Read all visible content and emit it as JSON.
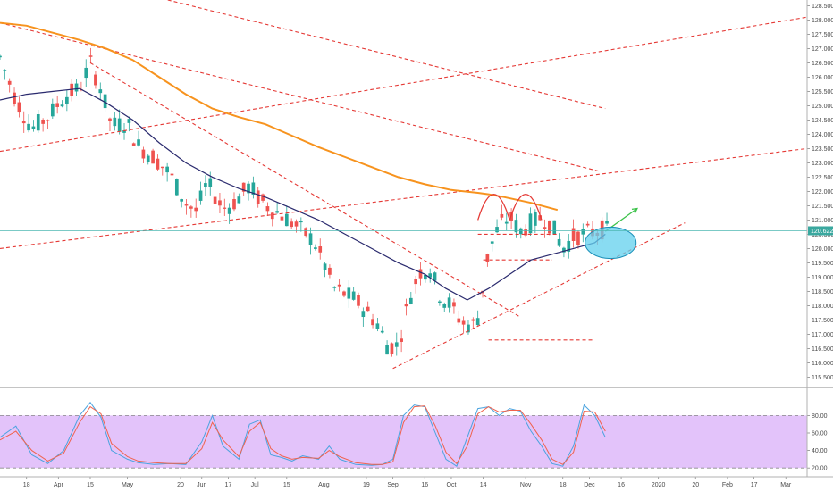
{
  "colors": {
    "up": "#26a69a",
    "down": "#ef5350",
    "ma_long": "#f7931e",
    "ma_short": "#2a2a6e",
    "trendline": "#e53935",
    "target_arrow": "#3cc24a",
    "ellipse_fill": "#62d0ee",
    "ellipse_stroke": "#1a8fb8",
    "stoch_band": "#e3c3fa",
    "stoch_k": "#4aa3df",
    "stoch_d": "#f0624d",
    "last_price_line": "#4fb9b3",
    "last_price_badge": "#3aa89f"
  },
  "chart_data": [
    {
      "type": "candlestick",
      "title": "",
      "y_axis_side": "right",
      "ylim": [
        115.2,
        128.7
      ],
      "xlim": [
        0,
        152
      ],
      "y_ticks": [
        "115.500",
        "116.000",
        "116.500",
        "117.000",
        "117.500",
        "118.000",
        "118.500",
        "119.000",
        "119.500",
        "120.000",
        "120.500",
        "121.000",
        "121.500",
        "122.000",
        "122.500",
        "123.000",
        "123.500",
        "124.000",
        "124.500",
        "125.000",
        "125.500",
        "126.000",
        "126.500",
        "127.000",
        "127.500",
        "128.000",
        "128.500"
      ],
      "x_ticks": [
        {
          "label": "18",
          "x": 5
        },
        {
          "label": "Apr",
          "x": 11
        },
        {
          "label": "15",
          "x": 17
        },
        {
          "label": "May",
          "x": 24
        },
        {
          "label": "20",
          "x": 34
        },
        {
          "label": "Jun",
          "x": 38
        },
        {
          "label": "17",
          "x": 43
        },
        {
          "label": "Jul",
          "x": 48
        },
        {
          "label": "15",
          "x": 54
        },
        {
          "label": "Aug",
          "x": 61
        },
        {
          "label": "19",
          "x": 69
        },
        {
          "label": "Sep",
          "x": 74
        },
        {
          "label": "16",
          "x": 80
        },
        {
          "label": "Oct",
          "x": 85
        },
        {
          "label": "14",
          "x": 91
        },
        {
          "label": "Nov",
          "x": 99
        },
        {
          "label": "18",
          "x": 106
        },
        {
          "label": "Dec",
          "x": 111
        },
        {
          "label": "16",
          "x": 117
        },
        {
          "label": "2020",
          "x": 124
        },
        {
          "label": "20",
          "x": 131
        },
        {
          "label": "Feb",
          "x": 137
        },
        {
          "label": "17",
          "x": 142
        },
        {
          "label": "Mar",
          "x": 148
        }
      ],
      "last_price": {
        "label": "120.622",
        "value": 120.622
      },
      "close_points": [
        [
          0,
          126.7
        ],
        [
          3,
          125.2
        ],
        [
          6,
          124.2
        ],
        [
          9,
          124.6
        ],
        [
          12,
          125.3
        ],
        [
          15,
          125.6
        ],
        [
          17,
          126.5
        ],
        [
          19,
          125.6
        ],
        [
          21,
          124.3
        ],
        [
          24,
          124.4
        ],
        [
          26,
          123.6
        ],
        [
          29,
          123.2
        ],
        [
          32,
          122.6
        ],
        [
          35,
          121.6
        ],
        [
          37,
          121.3
        ],
        [
          39,
          122.3
        ],
        [
          42,
          121.4
        ],
        [
          44,
          121.6
        ],
        [
          47,
          122.2
        ],
        [
          49,
          121.7
        ],
        [
          51,
          121.4
        ],
        [
          53,
          121.2
        ],
        [
          55,
          120.9
        ],
        [
          57,
          120.6
        ],
        [
          59,
          120.3
        ],
        [
          61,
          119.5
        ],
        [
          63,
          118.6
        ],
        [
          65,
          118.4
        ],
        [
          67,
          118.2
        ],
        [
          69,
          117.8
        ],
        [
          71,
          117.4
        ],
        [
          73,
          116.6
        ],
        [
          75,
          116.6
        ],
        [
          77,
          118.2
        ],
        [
          79,
          119.2
        ],
        [
          81,
          119.3
        ],
        [
          83,
          118.3
        ],
        [
          85,
          118.0
        ],
        [
          87,
          117.4
        ],
        [
          89,
          117.3
        ],
        [
          90,
          117.6
        ],
        [
          91,
          118.7
        ],
        [
          92,
          119.9
        ],
        [
          94,
          120.8
        ],
        [
          96,
          121.1
        ],
        [
          98,
          120.6
        ],
        [
          100,
          120.9
        ],
        [
          102,
          121.1
        ],
        [
          104,
          120.8
        ],
        [
          106,
          120.0
        ],
        [
          108,
          120.4
        ],
        [
          110,
          120.5
        ],
        [
          112,
          120.6
        ],
        [
          114,
          120.7
        ],
        [
          115,
          120.5
        ]
      ],
      "series": [
        {
          "name": "",
          "type": "line",
          "x": [
            0,
            5,
            10,
            15,
            20,
            25,
            30,
            35,
            40,
            45,
            50,
            55,
            60,
            65,
            70,
            75,
            80,
            85,
            90,
            92,
            95,
            100,
            105
          ],
          "y": [
            127.9,
            127.8,
            127.55,
            127.3,
            127.0,
            126.6,
            126.0,
            125.4,
            124.9,
            124.6,
            124.35,
            123.95,
            123.55,
            123.2,
            122.85,
            122.5,
            122.25,
            122.05,
            121.95,
            121.9,
            121.8,
            121.6,
            121.35
          ]
        },
        {
          "name": "",
          "type": "line",
          "x": [
            0,
            5,
            10,
            15,
            20,
            25,
            30,
            35,
            40,
            45,
            50,
            55,
            60,
            65,
            70,
            75,
            80,
            84,
            88,
            92,
            96,
            100,
            104,
            108,
            112,
            114
          ],
          "y": [
            125.2,
            125.4,
            125.5,
            125.6,
            125.1,
            124.5,
            123.7,
            123.0,
            122.5,
            122.1,
            121.8,
            121.4,
            121.0,
            120.5,
            120.0,
            119.5,
            119.1,
            118.6,
            118.2,
            118.6,
            119.1,
            119.6,
            119.8,
            120.0,
            120.2,
            120.5
          ]
        }
      ],
      "trendlines": [
        {
          "name": "",
          "from": [
            31.6,
            128.7
          ],
          "to": [
            114,
            124.9
          ]
        },
        {
          "name": "",
          "from": [
            0,
            127.9
          ],
          "to": [
            113,
            122.7
          ]
        },
        {
          "name": "",
          "from": [
            17,
            126.5
          ],
          "to": [
            98,
            117.6
          ]
        },
        {
          "name": "",
          "from": [
            0,
            123.4
          ],
          "to": [
            152,
            128.1
          ]
        },
        {
          "name": "",
          "from": [
            0,
            120.0
          ],
          "to": [
            152,
            123.5
          ]
        },
        {
          "name": "",
          "from": [
            74,
            115.8
          ],
          "to": [
            129,
            120.9
          ]
        },
        {
          "name": "",
          "from": [
            90,
            120.5
          ],
          "to": [
            105,
            120.5
          ]
        },
        {
          "name": "",
          "from": [
            91,
            119.6
          ],
          "to": [
            104,
            119.6
          ]
        },
        {
          "name": "",
          "from": [
            92,
            116.8
          ],
          "to": [
            112,
            116.8
          ]
        }
      ],
      "annotations": [
        {
          "type": "arc",
          "from": [
            90,
            121.0
          ],
          "to": [
            96,
            121.0
          ],
          "peak": 121.9
        },
        {
          "type": "arc",
          "from": [
            96,
            121.0
          ],
          "to": [
            102,
            121.0
          ],
          "peak": 121.9
        },
        {
          "type": "arrow",
          "from": [
            114,
            120.6
          ],
          "to": [
            120,
            121.4
          ]
        },
        {
          "type": "ellipse",
          "center": [
            115,
            120.2
          ],
          "rx": 4.8,
          "ry": 0.55
        }
      ]
    },
    {
      "type": "line",
      "title": "",
      "y_axis_side": "right",
      "ylim": [
        10,
        110
      ],
      "y_ticks": [
        "20.00",
        "40.00",
        "60.00",
        "80.00"
      ],
      "band": [
        20,
        80
      ],
      "series": [
        {
          "name": "",
          "x": [
            0,
            3,
            6,
            9,
            12,
            15,
            17,
            19,
            21,
            24,
            26,
            29,
            32,
            35,
            38,
            40,
            42,
            45,
            47,
            49,
            51,
            53,
            55,
            57,
            60,
            62,
            64,
            67,
            70,
            72,
            74,
            76,
            78,
            80,
            82,
            84,
            86,
            88,
            90,
            92,
            94,
            96,
            98,
            100,
            102,
            104,
            106,
            108,
            110,
            112,
            114
          ],
          "y": [
            55,
            68,
            35,
            25,
            40,
            80,
            95,
            78,
            40,
            30,
            26,
            24,
            25,
            24,
            50,
            80,
            45,
            30,
            70,
            75,
            35,
            32,
            28,
            34,
            30,
            45,
            30,
            24,
            23,
            24,
            30,
            80,
            92,
            90,
            60,
            30,
            22,
            55,
            88,
            90,
            80,
            88,
            85,
            62,
            45,
            25,
            22,
            45,
            92,
            80,
            55
          ]
        },
        {
          "name": "",
          "x": [
            0,
            3,
            6,
            9,
            12,
            15,
            17,
            19,
            21,
            24,
            26,
            29,
            32,
            35,
            38,
            40,
            42,
            45,
            47,
            49,
            51,
            53,
            55,
            57,
            60,
            62,
            64,
            67,
            70,
            72,
            74,
            76,
            78,
            80,
            82,
            84,
            86,
            88,
            90,
            92,
            94,
            96,
            98,
            100,
            102,
            104,
            106,
            108,
            110,
            112,
            114
          ],
          "y": [
            52,
            62,
            40,
            28,
            37,
            72,
            90,
            82,
            48,
            33,
            28,
            26,
            25,
            25,
            42,
            72,
            52,
            33,
            62,
            72,
            42,
            34,
            30,
            32,
            31,
            40,
            33,
            26,
            24,
            24,
            27,
            72,
            90,
            91,
            68,
            38,
            25,
            45,
            82,
            90,
            84,
            86,
            86,
            70,
            52,
            30,
            24,
            38,
            85,
            84,
            62
          ]
        }
      ]
    }
  ]
}
